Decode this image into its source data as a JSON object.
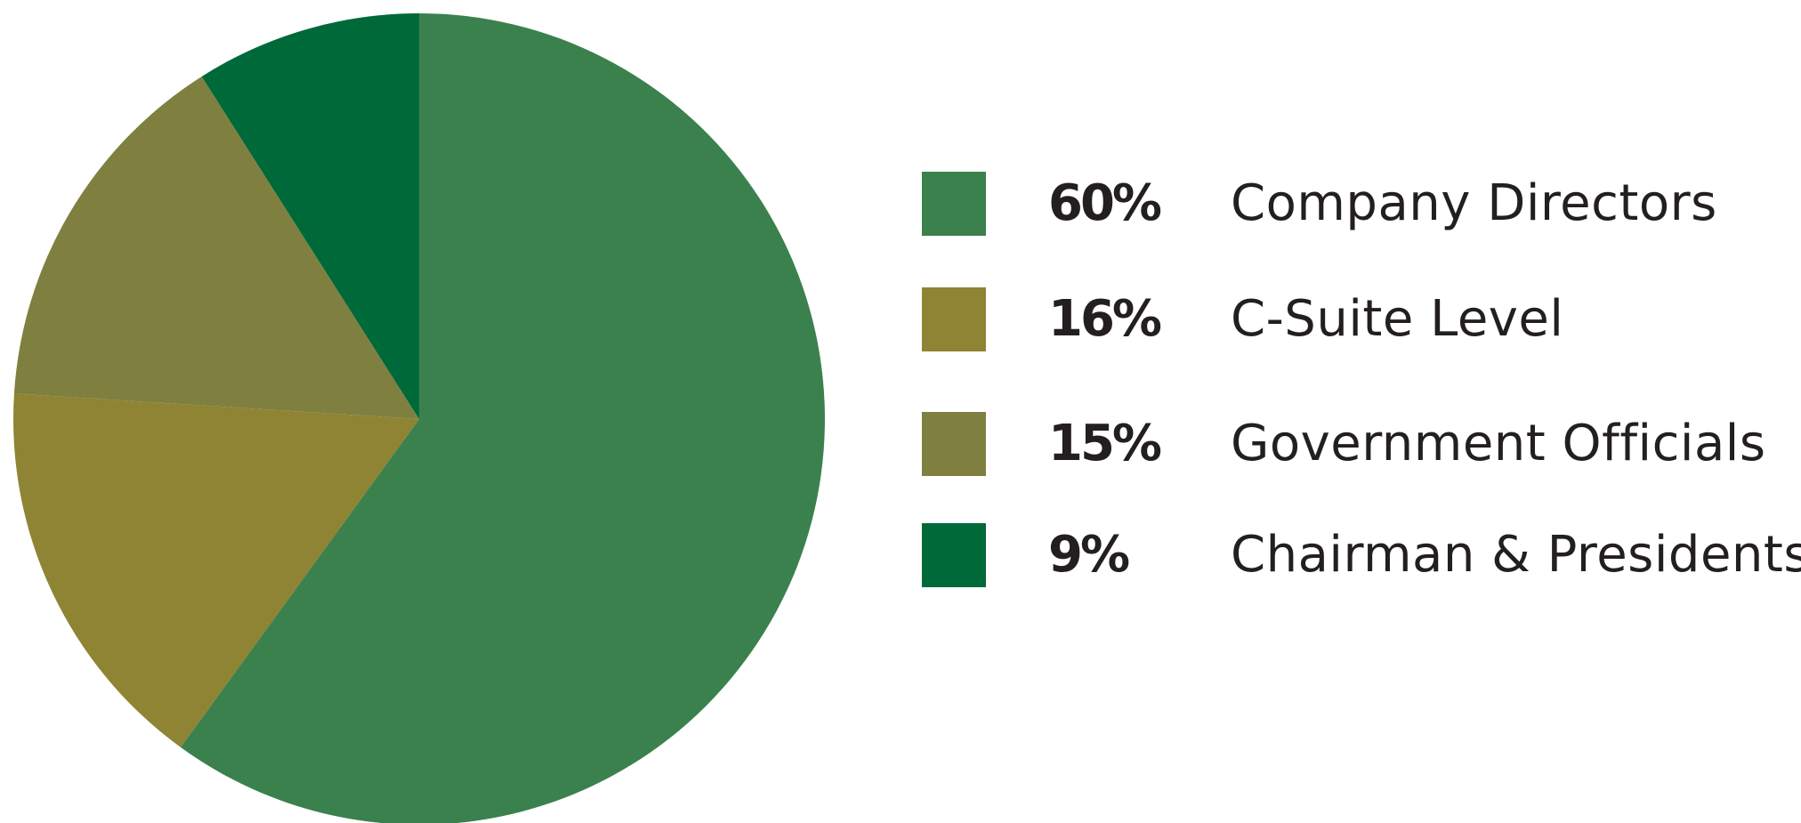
{
  "chart_data": {
    "type": "pie",
    "title": "",
    "start": "12 o'clock",
    "direction": "clockwise",
    "legend_placement": "right",
    "slices": [
      {
        "value": 60,
        "value_label": "60%",
        "label": "Company Directors",
        "color": "#3b814d"
      },
      {
        "value": 16,
        "value_label": "16%",
        "label": "C-Suite Level",
        "color": "#8f8433"
      },
      {
        "value": 15,
        "value_label": "15%",
        "label": "Government Officials",
        "color": "#7f8040"
      },
      {
        "value": 9,
        "value_label": "9%",
        "label": "Chairman & Presidents",
        "color": "#00693a"
      }
    ]
  }
}
